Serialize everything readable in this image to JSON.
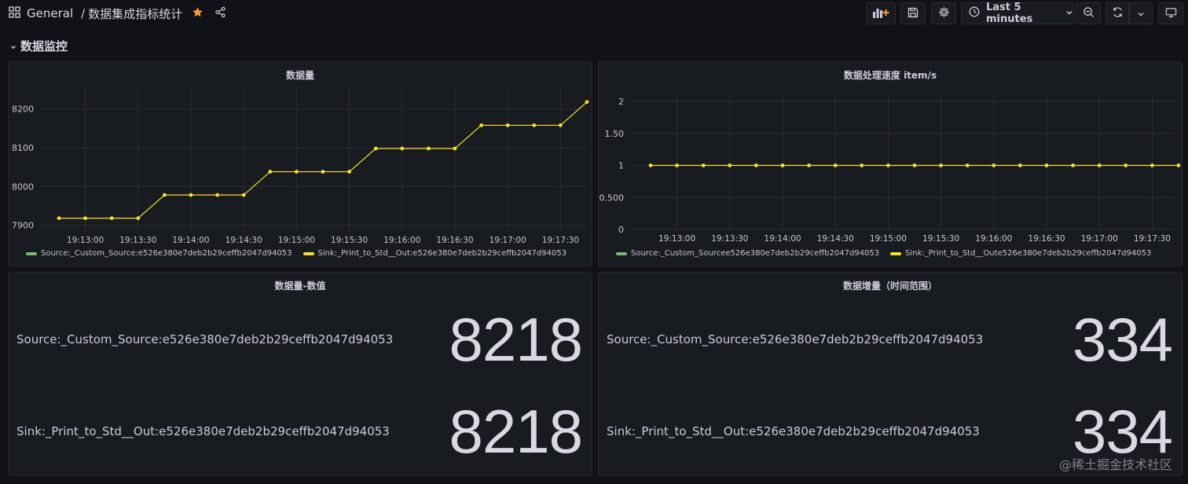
{
  "topbar": {
    "folder": "General",
    "separator": "/",
    "dashboard_title": "数据集成指标统计",
    "time_range_label": "Last 5 minutes"
  },
  "row": {
    "title": "数据监控"
  },
  "colors": {
    "yellow": "#fade2a",
    "green": "#73bf69",
    "star": "#ff9830"
  },
  "panels": {
    "volume_chart": {
      "title": "数据量",
      "legend": [
        {
          "name": "Source:_Custom_Source:e526e380e7deb2b29ceffb2047d94053",
          "color": "#73bf69"
        },
        {
          "name": "Sink:_Print_to_Std__Out:e526e380e7deb2b29ceffb2047d94053",
          "color": "#fade2a"
        }
      ]
    },
    "speed_chart": {
      "title": "数据处理速度 item/s",
      "legend": [
        {
          "name": "Source:_Custom_Sourcee526e380e7deb2b29ceffb2047d94053",
          "color": "#73bf69"
        },
        {
          "name": "Sink:_Print_to_Std__Oute526e380e7deb2b29ceffb2047d94053",
          "color": "#fade2a"
        }
      ]
    },
    "volume_stat": {
      "title": "数据量-数值",
      "items": [
        {
          "label": "Source:_Custom_Source:e526e380e7deb2b29ceffb2047d94053",
          "value": "8218"
        },
        {
          "label": "Sink:_Print_to_Std__Out:e526e380e7deb2b29ceffb2047d94053",
          "value": "8218"
        }
      ]
    },
    "increase_stat": {
      "title": "数据增量（时间范围）",
      "items": [
        {
          "label": "Source:_Custom_Source:e526e380e7deb2b29ceffb2047d94053",
          "value": "334"
        },
        {
          "label": "Sink:_Print_to_Std__Out:e526e380e7deb2b29ceffb2047d94053",
          "value": "334"
        }
      ]
    }
  },
  "watermark": "@稀土掘金技术社区",
  "chart_data": [
    {
      "type": "line",
      "title": "数据量",
      "x": [
        "19:12:45",
        "19:13:00",
        "19:13:15",
        "19:13:30",
        "19:13:45",
        "19:14:00",
        "19:14:15",
        "19:14:30",
        "19:14:45",
        "19:15:00",
        "19:15:15",
        "19:15:30",
        "19:15:45",
        "19:16:00",
        "19:16:15",
        "19:16:30",
        "19:16:45",
        "19:17:00",
        "19:17:15",
        "19:17:30",
        "19:17:45"
      ],
      "xticks": [
        "19:13:00",
        "19:13:30",
        "19:14:00",
        "19:14:30",
        "19:15:00",
        "19:15:30",
        "19:16:00",
        "19:16:30",
        "19:17:00",
        "19:17:30"
      ],
      "yticks": [
        7900,
        8000,
        8100,
        8200
      ],
      "ylim": [
        7885,
        8240
      ],
      "series": [
        {
          "name": "Sink:_Print_to_Std__Out:e526e380e7deb2b29ceffb2047d94053",
          "values": [
            7918,
            7918,
            7918,
            7918,
            7978,
            7978,
            7978,
            7978,
            8038,
            8038,
            8038,
            8038,
            8098,
            8098,
            8098,
            8098,
            8158,
            8158,
            8158,
            8158,
            8218
          ]
        }
      ],
      "legend_position": "bottom-left",
      "grid": true
    },
    {
      "type": "line",
      "title": "数据处理速度 item/s",
      "x": [
        "19:12:45",
        "19:13:00",
        "19:13:15",
        "19:13:30",
        "19:13:45",
        "19:14:00",
        "19:14:15",
        "19:14:30",
        "19:14:45",
        "19:15:00",
        "19:15:15",
        "19:15:30",
        "19:15:45",
        "19:16:00",
        "19:16:15",
        "19:16:30",
        "19:16:45",
        "19:17:00",
        "19:17:15",
        "19:17:30",
        "19:17:45"
      ],
      "xticks": [
        "19:13:00",
        "19:13:30",
        "19:14:00",
        "19:14:30",
        "19:15:00",
        "19:15:30",
        "19:16:00",
        "19:16:30",
        "19:17:00",
        "19:17:30"
      ],
      "yticks": [
        0,
        0.5,
        1,
        1.5,
        2
      ],
      "ytick_labels": [
        "0",
        "0.500",
        "1",
        "1.50",
        "2"
      ],
      "ylim": [
        0,
        2
      ],
      "series": [
        {
          "name": "Sink:_Print_to_Std__Oute526e380e7deb2b29ceffb2047d94053",
          "values": [
            1,
            1,
            1,
            1,
            1,
            1,
            1,
            1,
            1,
            1,
            1,
            1,
            1,
            1,
            1,
            1,
            1,
            1,
            1,
            1,
            1
          ]
        }
      ],
      "legend_position": "bottom-left",
      "grid": true
    }
  ]
}
